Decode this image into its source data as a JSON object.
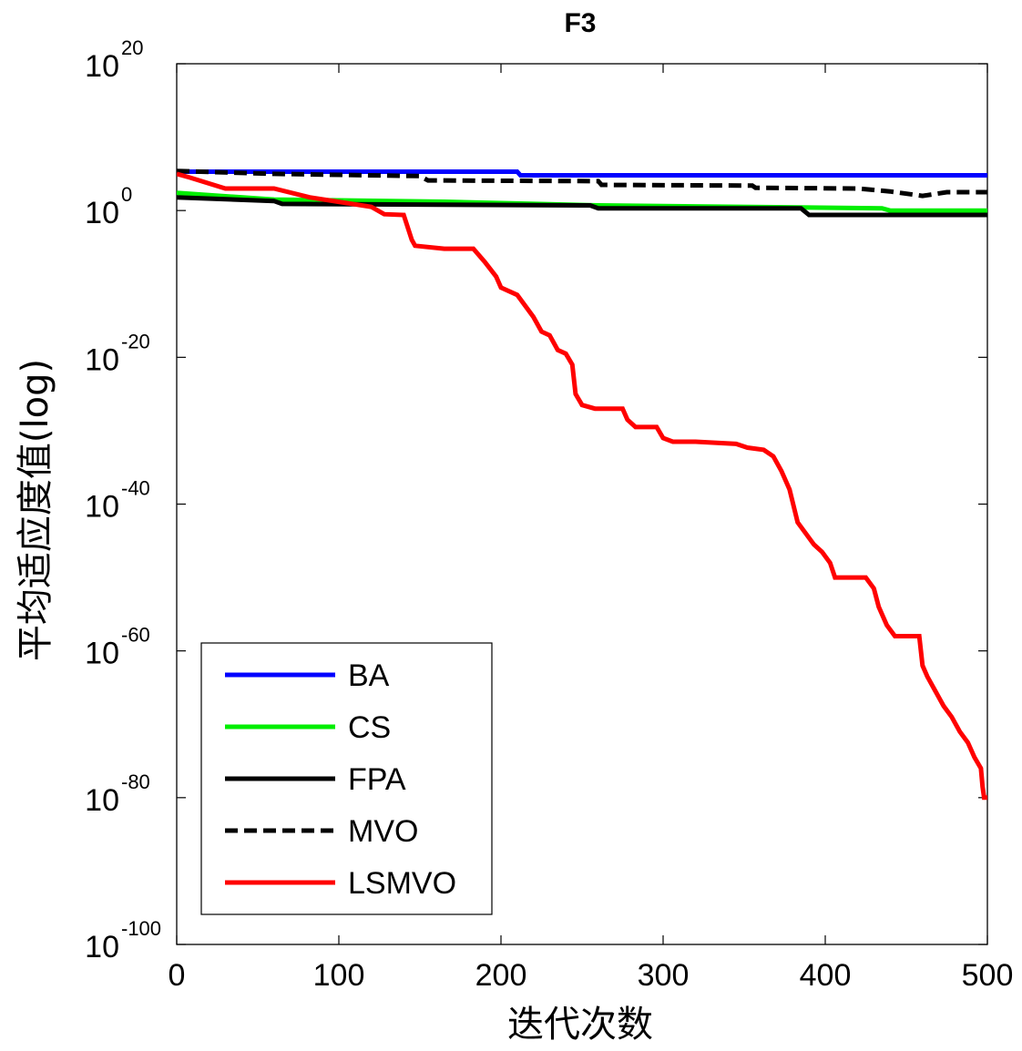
{
  "chart_data": {
    "type": "line",
    "title": "F3",
    "xlabel": "迭代次数",
    "ylabel": "平均适应度值(log)",
    "yscale": "log",
    "xlim": [
      0,
      500
    ],
    "ylim_exponent": [
      -100,
      20
    ],
    "xticks": [
      "0",
      "100",
      "200",
      "300",
      "400",
      "500"
    ],
    "yticks": [
      {
        "base": "10",
        "exp": "20",
        "value": 20
      },
      {
        "base": "10",
        "exp": "0",
        "value": 0
      },
      {
        "base": "10",
        "exp": "-20",
        "value": -20
      },
      {
        "base": "10",
        "exp": "-40",
        "value": -40
      },
      {
        "base": "10",
        "exp": "-60",
        "value": -60
      },
      {
        "base": "10",
        "exp": "-80",
        "value": -80
      },
      {
        "base": "10",
        "exp": "-100",
        "value": -100
      }
    ],
    "legend_position": "lower-left",
    "series": [
      {
        "name": "BA",
        "color": "#0000ff",
        "dash": false,
        "points_log10": [
          [
            0,
            5.3
          ],
          [
            210,
            5.3
          ],
          [
            212,
            4.8
          ],
          [
            500,
            4.8
          ]
        ]
      },
      {
        "name": "CS",
        "color": "#00ee00",
        "dash": false,
        "points_log10": [
          [
            0,
            2.4
          ],
          [
            20,
            2.1
          ],
          [
            60,
            1.5
          ],
          [
            165,
            1.2
          ],
          [
            260,
            0.7
          ],
          [
            435,
            0.3
          ],
          [
            440,
            0.0
          ],
          [
            500,
            0.0
          ]
        ]
      },
      {
        "name": "FPA",
        "color": "#000000",
        "dash": false,
        "points_log10": [
          [
            0,
            1.8
          ],
          [
            60,
            1.3
          ],
          [
            65,
            0.9
          ],
          [
            255,
            0.7
          ],
          [
            260,
            0.3
          ],
          [
            385,
            0.3
          ],
          [
            390,
            -0.6
          ],
          [
            500,
            -0.6
          ]
        ]
      },
      {
        "name": "MVO",
        "color": "#000000",
        "dash": true,
        "points_log10": [
          [
            0,
            5.4
          ],
          [
            60,
            5.0
          ],
          [
            150,
            4.7
          ],
          [
            155,
            4.1
          ],
          [
            260,
            4.0
          ],
          [
            262,
            3.5
          ],
          [
            355,
            3.4
          ],
          [
            357,
            3.1
          ],
          [
            420,
            3.0
          ],
          [
            440,
            2.6
          ],
          [
            460,
            2.0
          ],
          [
            475,
            2.5
          ],
          [
            500,
            2.5
          ]
        ]
      },
      {
        "name": "LSMVO",
        "color": "#ff0000",
        "dash": false,
        "points_log10": [
          [
            0,
            5.0
          ],
          [
            8,
            4.5
          ],
          [
            30,
            3.0
          ],
          [
            60,
            3.0
          ],
          [
            82,
            1.8
          ],
          [
            120,
            0.5
          ],
          [
            128,
            -0.5
          ],
          [
            140,
            -0.6
          ],
          [
            145,
            -4.0
          ],
          [
            147,
            -4.8
          ],
          [
            165,
            -5.2
          ],
          [
            183,
            -5.2
          ],
          [
            190,
            -7.0
          ],
          [
            197,
            -9.0
          ],
          [
            200,
            -10.5
          ],
          [
            210,
            -11.5
          ],
          [
            215,
            -13.0
          ],
          [
            220,
            -14.5
          ],
          [
            225,
            -16.5
          ],
          [
            230,
            -17.0
          ],
          [
            235,
            -19.0
          ],
          [
            240,
            -19.5
          ],
          [
            244,
            -21.0
          ],
          [
            246,
            -25.0
          ],
          [
            250,
            -26.5
          ],
          [
            258,
            -27.0
          ],
          [
            275,
            -27.0
          ],
          [
            278,
            -28.5
          ],
          [
            283,
            -29.5
          ],
          [
            296,
            -29.5
          ],
          [
            300,
            -31.0
          ],
          [
            306,
            -31.5
          ],
          [
            320,
            -31.5
          ],
          [
            345,
            -31.8
          ],
          [
            352,
            -32.3
          ],
          [
            362,
            -32.6
          ],
          [
            368,
            -33.5
          ],
          [
            373,
            -35.5
          ],
          [
            378,
            -38.0
          ],
          [
            383,
            -42.5
          ],
          [
            388,
            -44.0
          ],
          [
            393,
            -45.5
          ],
          [
            398,
            -46.5
          ],
          [
            403,
            -48.0
          ],
          [
            406,
            -50.0
          ],
          [
            425,
            -50.0
          ],
          [
            430,
            -51.5
          ],
          [
            433,
            -54.0
          ],
          [
            438,
            -56.5
          ],
          [
            443,
            -58.0
          ],
          [
            458,
            -58.0
          ],
          [
            460,
            -62.0
          ],
          [
            463,
            -63.5
          ],
          [
            468,
            -65.5
          ],
          [
            473,
            -67.5
          ],
          [
            478,
            -69.0
          ],
          [
            483,
            -71.0
          ],
          [
            488,
            -72.5
          ],
          [
            492,
            -74.5
          ],
          [
            496,
            -76.0
          ],
          [
            497,
            -78.5
          ],
          [
            498,
            -80.0
          ],
          [
            500,
            -80.0
          ]
        ]
      }
    ]
  }
}
